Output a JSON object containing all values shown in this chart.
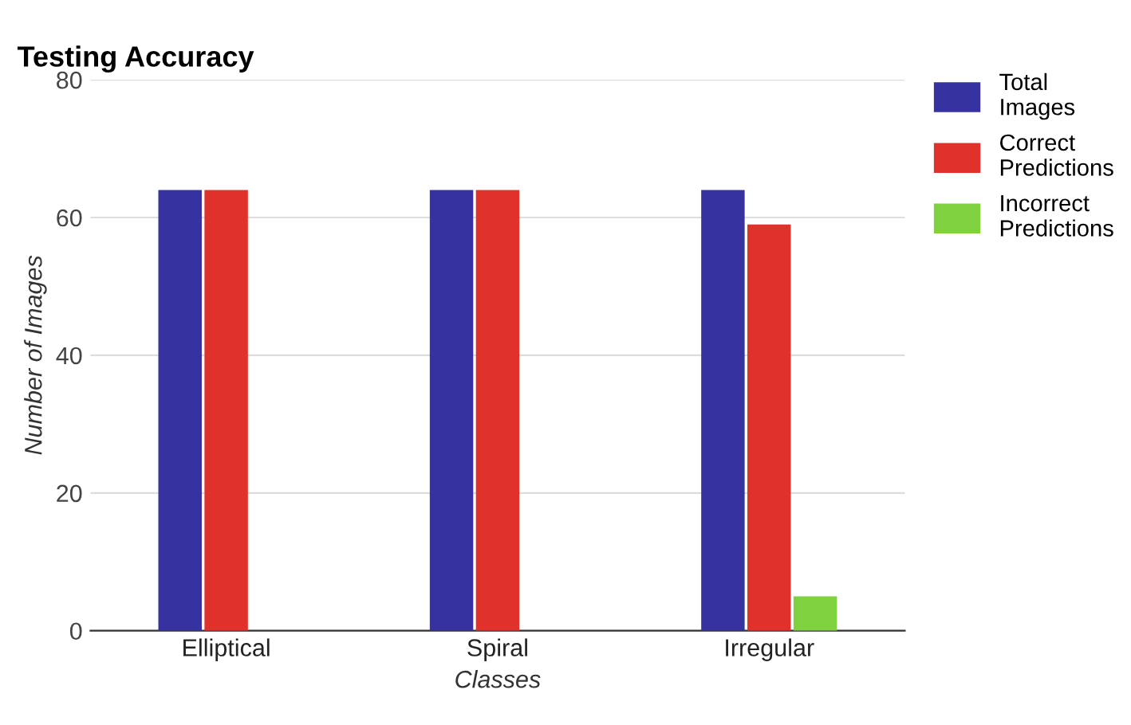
{
  "chart_data": {
    "type": "bar",
    "title": "Testing Accuracy",
    "xlabel": "Classes",
    "ylabel": "Number of Images",
    "categories": [
      "Elliptical",
      "Spiral",
      "Irregular"
    ],
    "series": [
      {
        "name": "Total\nImages",
        "color": "#3633a0",
        "values": [
          64,
          64,
          64
        ]
      },
      {
        "name": "Correct\nPredictions",
        "color": "#e0322a",
        "values": [
          64,
          64,
          59
        ]
      },
      {
        "name": "Incorrect\nPredictions",
        "color": "#7fd13f",
        "values": [
          0,
          0,
          5
        ]
      }
    ],
    "ylim": [
      0,
      80
    ],
    "yticks": [
      0,
      20,
      40,
      60,
      80
    ],
    "grid": "y",
    "legend": "right"
  }
}
